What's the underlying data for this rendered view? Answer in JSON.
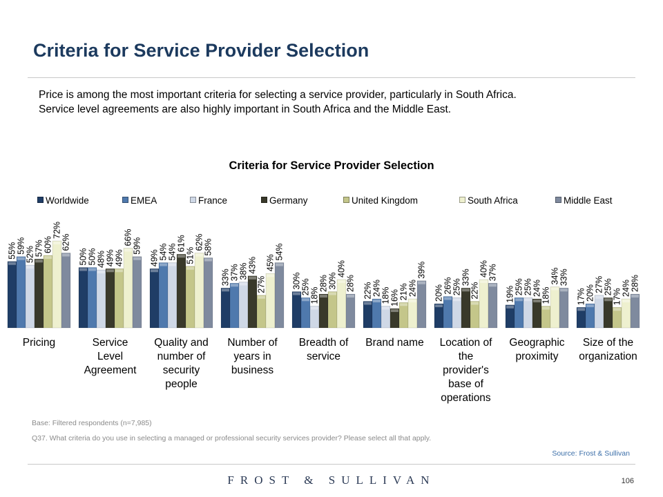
{
  "header": {
    "title": "Criteria for Service Provider Selection"
  },
  "intro": {
    "line1": "Price is among the most important criteria for selecting a service provider, particularly in South Africa.",
    "line2": "Service level agreements are also highly important in South Africa and the Middle East."
  },
  "colors": {
    "title": "#1c3a5e",
    "series": [
      "#1f3d66",
      "#4f79ad",
      "#cfd8e6",
      "#39392a",
      "#c4c68a",
      "#eef0cf",
      "#7f8a9e"
    ]
  },
  "chart_data": {
    "type": "bar",
    "title": "Criteria for Service Provider Selection",
    "legend_position": "top",
    "grid": false,
    "ylim": [
      0,
      100
    ],
    "categories": [
      [
        "Pricing"
      ],
      [
        "Service",
        "Level",
        "Agreement"
      ],
      [
        "Quality and",
        "number of",
        "security",
        "people"
      ],
      [
        "Number of",
        "years in",
        "business"
      ],
      [
        "Breadth of",
        "service"
      ],
      [
        "Brand name"
      ],
      [
        "Location of",
        "the",
        "provider's",
        "base of",
        "operations"
      ],
      [
        "Geographic",
        "proximity"
      ],
      [
        "Size of the",
        "organization"
      ]
    ],
    "series": [
      {
        "name": "Worldwide",
        "values": [
          55,
          50,
          49,
          33,
          30,
          22,
          20,
          19,
          17
        ]
      },
      {
        "name": "EMEA",
        "values": [
          59,
          50,
          54,
          37,
          25,
          24,
          26,
          25,
          20
        ]
      },
      {
        "name": "France",
        "values": [
          52,
          48,
          54,
          38,
          18,
          18,
          25,
          25,
          27
        ]
      },
      {
        "name": "Germany",
        "values": [
          57,
          49,
          61,
          43,
          28,
          16,
          33,
          24,
          25
        ]
      },
      {
        "name": "United Kingdom",
        "values": [
          60,
          49,
          51,
          27,
          30,
          21,
          22,
          18,
          17
        ]
      },
      {
        "name": "South Africa",
        "values": [
          72,
          66,
          62,
          45,
          40,
          24,
          40,
          34,
          24
        ]
      },
      {
        "name": "Middle East",
        "values": [
          62,
          59,
          58,
          54,
          28,
          39,
          37,
          33,
          28
        ]
      }
    ],
    "value_suffix": "%"
  },
  "footnotes": {
    "base": "Base: Filtered respondents (n=7,985)",
    "question": "Q37. What criteria do you use in selecting a managed or professional security services provider? Please select all that apply.",
    "source": "Source: Frost & Sullivan"
  },
  "footer": {
    "brand": "FROST & SULLIVAN",
    "page_number": "106"
  }
}
